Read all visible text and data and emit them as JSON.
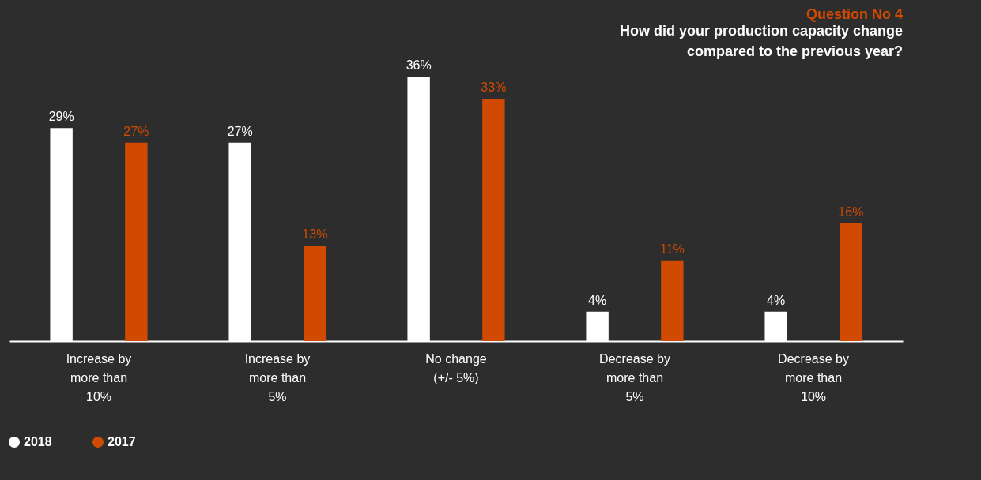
{
  "chart_data": {
    "type": "bar",
    "title": "Question No 4",
    "subtitle": "How did your production capacity change\ncompared to the previous year?",
    "categories": [
      "Increase by\nmore than\n10%",
      "Increase by\nmore than\n5%",
      "No change\n(+/- 5%)",
      "Decrease by\nmore than\n5%",
      "Decrease by\nmore than\n10%"
    ],
    "series": [
      {
        "name": "2018",
        "color": "#ffffff",
        "values": [
          29,
          27,
          36,
          4,
          4
        ],
        "value_labels": [
          "29%",
          "27%",
          "36%",
          "4%",
          "4%"
        ]
      },
      {
        "name": "2017",
        "color": "#d04a02",
        "values": [
          27,
          13,
          33,
          11,
          16
        ],
        "value_labels": [
          "27%",
          "13%",
          "33%",
          "11%",
          "16%"
        ]
      }
    ],
    "legend": "bottom left",
    "grid": false
  }
}
